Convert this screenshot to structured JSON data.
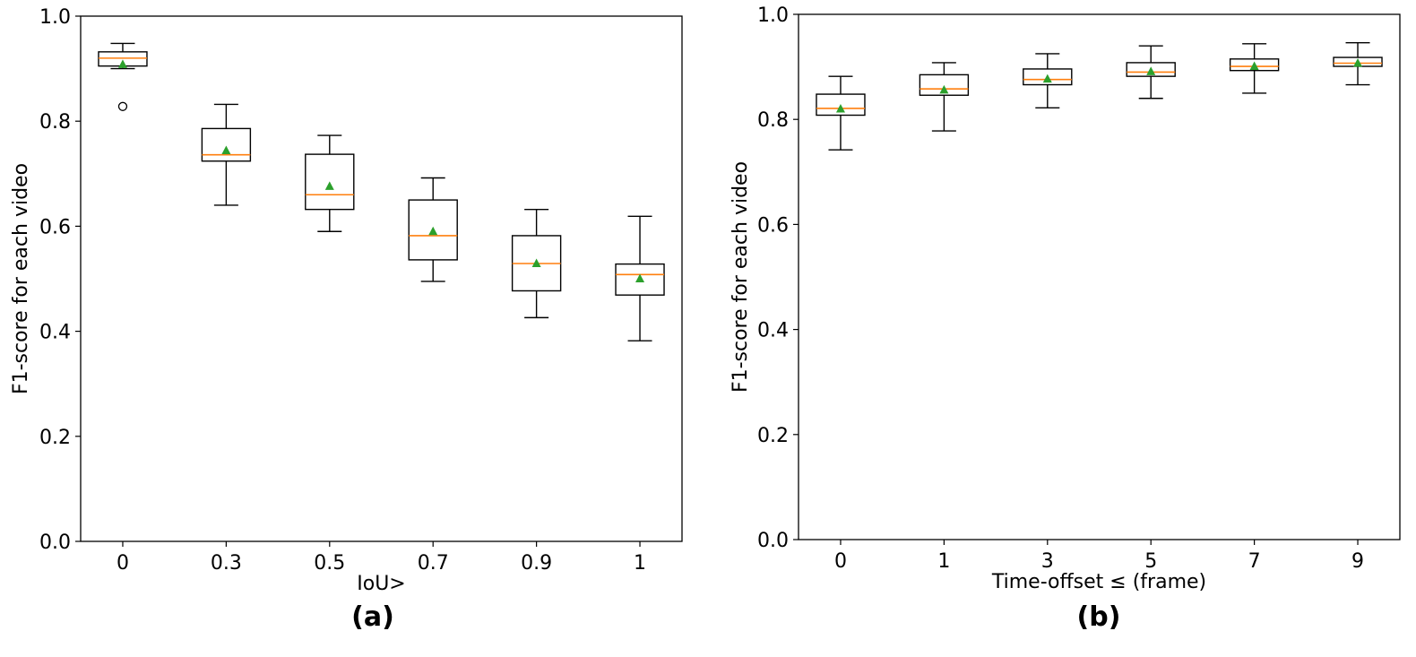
{
  "chart_data": [
    {
      "type": "box",
      "panel_label": "(a)",
      "xlabel": "IoU>",
      "ylabel": "F1-score for each video",
      "ylim": [
        0.0,
        1.0
      ],
      "yticks": [
        "0.0",
        "0.2",
        "0.4",
        "0.6",
        "0.8",
        "1.0"
      ],
      "categories": [
        "0",
        "0.3",
        "0.5",
        "0.7",
        "0.9",
        "1"
      ],
      "boxes": [
        {
          "whisker_low": 0.9,
          "q1": 0.905,
          "median": 0.92,
          "q3": 0.932,
          "whisker_high": 0.948,
          "mean": 0.908,
          "outliers": [
            0.828
          ]
        },
        {
          "whisker_low": 0.64,
          "q1": 0.724,
          "median": 0.736,
          "q3": 0.786,
          "whisker_high": 0.832,
          "mean": 0.744,
          "outliers": []
        },
        {
          "whisker_low": 0.59,
          "q1": 0.632,
          "median": 0.66,
          "q3": 0.737,
          "whisker_high": 0.773,
          "mean": 0.676,
          "outliers": []
        },
        {
          "whisker_low": 0.495,
          "q1": 0.536,
          "median": 0.582,
          "q3": 0.65,
          "whisker_high": 0.692,
          "mean": 0.59,
          "outliers": []
        },
        {
          "whisker_low": 0.426,
          "q1": 0.477,
          "median": 0.529,
          "q3": 0.582,
          "whisker_high": 0.632,
          "mean": 0.529,
          "outliers": []
        },
        {
          "whisker_low": 0.382,
          "q1": 0.469,
          "median": 0.508,
          "q3": 0.528,
          "whisker_high": 0.619,
          "mean": 0.5,
          "outliers": []
        }
      ]
    },
    {
      "type": "box",
      "panel_label": "(b)",
      "xlabel": "Time-offset ≤ (frame)",
      "ylabel": "F1-score for each video",
      "ylim": [
        0.0,
        1.0
      ],
      "yticks": [
        "0.0",
        "0.2",
        "0.4",
        "0.6",
        "0.8",
        "1.0"
      ],
      "categories": [
        "0",
        "1",
        "3",
        "5",
        "7",
        "9"
      ],
      "boxes": [
        {
          "whisker_low": 0.742,
          "q1": 0.808,
          "median": 0.821,
          "q3": 0.848,
          "whisker_high": 0.882,
          "mean": 0.82,
          "outliers": []
        },
        {
          "whisker_low": 0.778,
          "q1": 0.846,
          "median": 0.858,
          "q3": 0.885,
          "whisker_high": 0.908,
          "mean": 0.856,
          "outliers": []
        },
        {
          "whisker_low": 0.822,
          "q1": 0.866,
          "median": 0.876,
          "q3": 0.896,
          "whisker_high": 0.925,
          "mean": 0.877,
          "outliers": []
        },
        {
          "whisker_low": 0.84,
          "q1": 0.882,
          "median": 0.89,
          "q3": 0.908,
          "whisker_high": 0.94,
          "mean": 0.891,
          "outliers": []
        },
        {
          "whisker_low": 0.85,
          "q1": 0.893,
          "median": 0.901,
          "q3": 0.915,
          "whisker_high": 0.944,
          "mean": 0.901,
          "outliers": []
        },
        {
          "whisker_low": 0.866,
          "q1": 0.901,
          "median": 0.907,
          "q3": 0.918,
          "whisker_high": 0.946,
          "mean": 0.907,
          "outliers": []
        }
      ]
    }
  ],
  "colors": {
    "box": "#000000",
    "median": "#ff7f0e",
    "mean": "#2ca02c",
    "background": "#ffffff"
  }
}
